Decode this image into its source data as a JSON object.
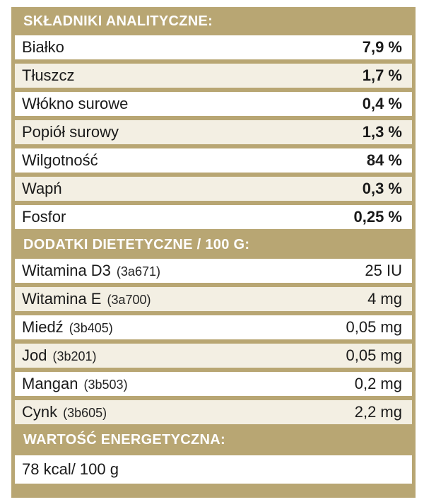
{
  "analytical": {
    "header": "SKŁADNIKI ANALITYCZNE:",
    "rows": [
      {
        "name": "Białko",
        "value": "7,9 %"
      },
      {
        "name": "Tłuszcz",
        "value": "1,7 %"
      },
      {
        "name": "Włókno surowe",
        "value": "0,4 %"
      },
      {
        "name": "Popiół surowy",
        "value": "1,3 %"
      },
      {
        "name": "Wilgotność",
        "value": "84 %"
      },
      {
        "name": "Wapń",
        "value": "0,3 %"
      },
      {
        "name": "Fosfor",
        "value": "0,25 %"
      }
    ]
  },
  "additives": {
    "header": "DODATKI DIETETYCZNE / 100 G:",
    "rows": [
      {
        "name": "Witamina D3",
        "code": "(3a671)",
        "value": "25 IU"
      },
      {
        "name": "Witamina E",
        "code": "(3a700)",
        "value": "4 mg"
      },
      {
        "name": "Miedź",
        "code": "(3b405)",
        "value": "0,05 mg"
      },
      {
        "name": "Jod",
        "code": "(3b201)",
        "value": "0,05 mg"
      },
      {
        "name": "Mangan",
        "code": "(3b503)",
        "value": "0,2 mg"
      },
      {
        "name": "Cynk",
        "code": "(3b605)",
        "value": "2,2 mg"
      }
    ]
  },
  "energy": {
    "header": "WARTOŚĆ ENERGETYCZNA:",
    "value": "78 kcal/ 100 g"
  },
  "colors": {
    "header_bg": "#b8a673",
    "row_light": "#ffffff",
    "row_tint": "#f3efe3"
  }
}
